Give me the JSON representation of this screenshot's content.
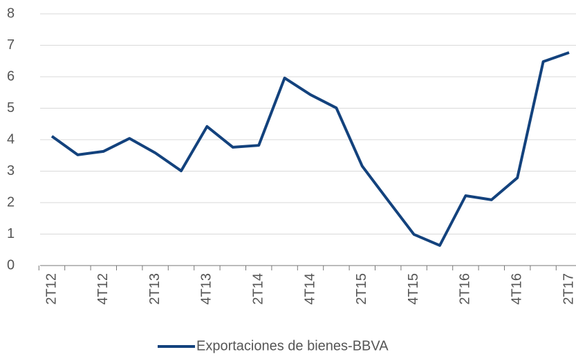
{
  "chart_data": {
    "type": "line",
    "categories": [
      "2T12",
      null,
      "4T12",
      null,
      "2T13",
      null,
      "4T13",
      null,
      "2T14",
      null,
      "4T14",
      null,
      "2T15",
      null,
      "4T15",
      null,
      "2T16",
      null,
      "4T16",
      null,
      "2T17"
    ],
    "series": [
      {
        "name": "Exportaciones de bienes-BBVA",
        "color": "#13427d",
        "values": [
          4.11,
          3.52,
          3.63,
          4.04,
          3.58,
          3.01,
          4.42,
          3.76,
          3.82,
          5.96,
          5.43,
          5.01,
          3.16,
          2.07,
          0.99,
          0.64,
          2.22,
          2.09,
          2.79,
          6.48,
          6.77
        ]
      }
    ],
    "ylim": [
      0,
      8
    ],
    "yticks": [
      0,
      1,
      2,
      3,
      4,
      5,
      6,
      7,
      8
    ],
    "grid": true,
    "legend": "bottom"
  }
}
